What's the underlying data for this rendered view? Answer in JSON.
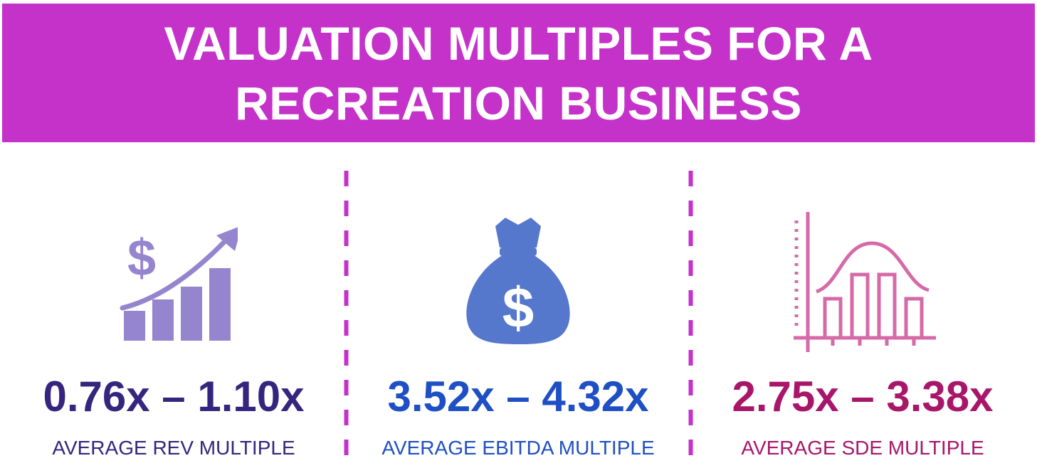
{
  "title": {
    "line1": "VALUATION MULTIPLES FOR A",
    "line2": "RECREATION BUSINESS"
  },
  "colors": {
    "banner": "#c532c9",
    "divider": "#c532c9",
    "rev": "#35257e",
    "ebitda": "#1f4fc4",
    "sde": "#a8166a",
    "rev_icon": "#9585cf",
    "ebitda_icon": "#5577cc",
    "sde_icon": "#d66aa8"
  },
  "metrics": [
    {
      "range": "0.76x – 1.10x",
      "label": "AVERAGE REV MULTIPLE",
      "icon": "revenue-growth-chart-icon"
    },
    {
      "range": "3.52x – 4.32x",
      "label": "AVERAGE EBITDA MULTIPLE",
      "icon": "money-bag-icon"
    },
    {
      "range": "2.75x – 3.38x",
      "label": "AVERAGE SDE MULTIPLE",
      "icon": "distribution-chart-icon"
    }
  ]
}
